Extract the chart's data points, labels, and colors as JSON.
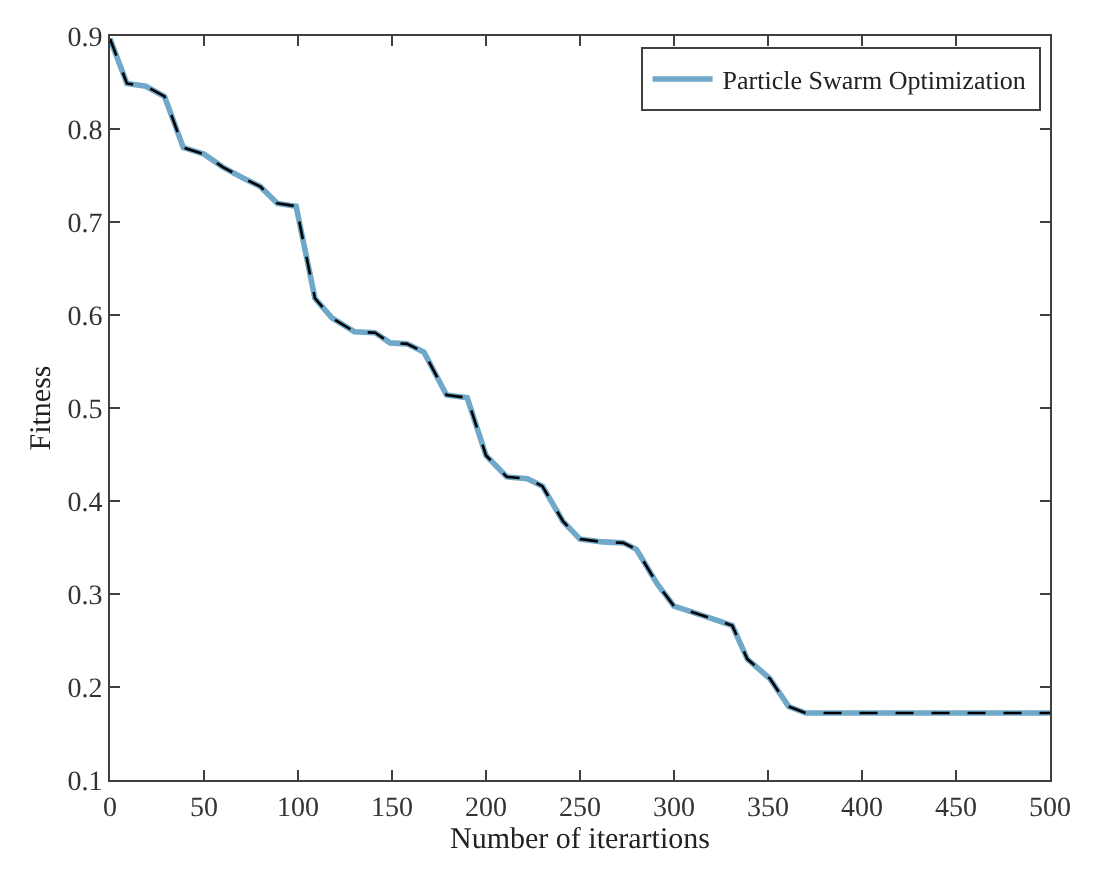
{
  "chart_data": {
    "type": "line",
    "xlabel": "Number of iterartions",
    "ylabel": "Fitness",
    "x": [
      0,
      9,
      19,
      29,
      39,
      50,
      60,
      71,
      80,
      89,
      99,
      109,
      118,
      130,
      141,
      149,
      158,
      167,
      179,
      190,
      200,
      211,
      222,
      230,
      241,
      250,
      262,
      273,
      280,
      291,
      300,
      309,
      321,
      331,
      339,
      351,
      361,
      370,
      500
    ],
    "series": [
      {
        "name": "Particle Swarm Optimization",
        "color": "#6fa8c8",
        "line_style": "solid",
        "values": [
          0.897,
          0.849,
          0.846,
          0.835,
          0.78,
          0.773,
          0.759,
          0.747,
          0.738,
          0.72,
          0.717,
          0.618,
          0.597,
          0.582,
          0.581,
          0.57,
          0.569,
          0.56,
          0.514,
          0.511,
          0.449,
          0.426,
          0.424,
          0.416,
          0.378,
          0.359,
          0.356,
          0.355,
          0.348,
          0.311,
          0.287,
          0.281,
          0.273,
          0.266,
          0.23,
          0.209,
          0.179,
          0.172,
          0.172
        ]
      },
      {
        "color": "#000000",
        "line_style": "dashed",
        "values": [
          0.897,
          0.849,
          0.846,
          0.835,
          0.78,
          0.773,
          0.759,
          0.747,
          0.738,
          0.72,
          0.717,
          0.618,
          0.597,
          0.582,
          0.581,
          0.57,
          0.569,
          0.56,
          0.514,
          0.511,
          0.449,
          0.426,
          0.424,
          0.416,
          0.378,
          0.359,
          0.356,
          0.355,
          0.348,
          0.311,
          0.287,
          0.281,
          0.273,
          0.266,
          0.23,
          0.209,
          0.179,
          0.172,
          0.172
        ]
      }
    ],
    "xlim": [
      0,
      500
    ],
    "xticks": [
      0,
      50,
      100,
      150,
      200,
      250,
      300,
      350,
      400,
      450,
      500
    ],
    "ylim": [
      0.1,
      0.9
    ],
    "yticks": [
      0.1,
      0.2,
      0.3,
      0.4,
      0.5,
      0.6,
      0.7,
      0.8,
      0.9
    ],
    "legend": "top right",
    "marker": "none"
  }
}
